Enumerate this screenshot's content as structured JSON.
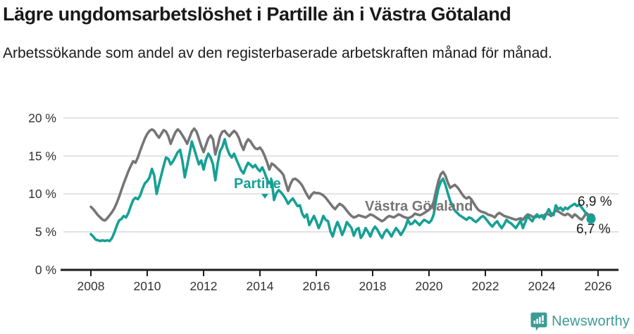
{
  "header": {
    "title": "Lägre ungdomsarbetslöshet i Partille än i Västra Götaland",
    "subtitle": "Arbetssökande som andel av den registerbaserade arbetskraften månad för månad."
  },
  "colors": {
    "partille": "#16A095",
    "vastra_gotaland": "#757575",
    "grid": "#DCDCDC",
    "axis": "#1d1d1d",
    "tick_text": "#333333",
    "end_label_text": "#1a1a1a",
    "brand_teal": "#3B9B95"
  },
  "chart_data": {
    "type": "line",
    "title": "Lägre ungdomsarbetslöshet i Partille än i Västra Götaland",
    "subtitle": "Arbetssökande som andel av den registerbaserade arbetskraften månad för månad.",
    "grid": true,
    "legend": "inline-labels",
    "x_axis": {
      "unit": "year-month",
      "tick_values": [
        2008,
        2010,
        2012,
        2014,
        2016,
        2018,
        2020,
        2022,
        2024,
        2026
      ],
      "tick_labels": [
        "2008",
        "2010",
        "2012",
        "2014",
        "2016",
        "2018",
        "2020",
        "2022",
        "2024",
        "2026"
      ]
    },
    "y_axis": {
      "unit": "percent",
      "range": [
        0,
        20
      ],
      "tick_values": [
        0,
        5,
        10,
        15,
        20
      ],
      "tick_labels": [
        "0 %",
        "5 %",
        "10 %",
        "15 %",
        "20 %"
      ]
    },
    "series": [
      {
        "name": "Västra Götaland",
        "color": "#757575",
        "start_year": 2008,
        "start_month": 1,
        "end_label": "6,9 %",
        "values": [
          8.3,
          8.0,
          7.6,
          7.2,
          6.9,
          6.6,
          6.5,
          6.8,
          7.2,
          7.6,
          8.1,
          8.8,
          9.6,
          10.5,
          11.4,
          12.2,
          13.0,
          13.7,
          14.3,
          14.1,
          14.8,
          15.7,
          16.5,
          17.3,
          17.9,
          18.3,
          18.5,
          18.3,
          17.8,
          17.4,
          17.9,
          18.4,
          18.2,
          17.6,
          16.6,
          17.4,
          18.1,
          18.5,
          18.2,
          17.7,
          17.2,
          16.6,
          17.4,
          18.2,
          18.6,
          18.2,
          17.3,
          16.3,
          15.5,
          16.4,
          17.3,
          17.7,
          17.2,
          15.2,
          16.3,
          17.6,
          18.2,
          18.3,
          17.9,
          17.6,
          18.0,
          18.3,
          18.0,
          17.4,
          16.5,
          15.8,
          16.7,
          17.2,
          16.9,
          16.4,
          16.0,
          15.9,
          16.1,
          15.7,
          15.0,
          14.2,
          13.2,
          14.0,
          13.8,
          13.5,
          13.2,
          12.9,
          12.5,
          11.4,
          10.4,
          11.3,
          11.9,
          12.0,
          11.8,
          11.5,
          11.1,
          10.5,
          9.9,
          9.4,
          9.9,
          10.2,
          10.1,
          10.1,
          10.0,
          9.8,
          9.5,
          9.1,
          8.7,
          8.3,
          8.0,
          8.4,
          8.7,
          8.5,
          8.2,
          7.8,
          7.4,
          7.1,
          6.9,
          7.0,
          7.2,
          7.1,
          7.0,
          6.9,
          7.1,
          7.3,
          7.2,
          7.0,
          6.8,
          6.6,
          6.4,
          6.6,
          6.9,
          7.1,
          7.0,
          6.9,
          7.1,
          7.3,
          7.2,
          7.0,
          6.9,
          6.8,
          6.9,
          7.1,
          7.4,
          7.3,
          7.2,
          7.3,
          7.5,
          7.7,
          7.9,
          8.2,
          9.0,
          10.4,
          11.7,
          12.6,
          12.9,
          12.4,
          11.5,
          10.8,
          11.0,
          11.2,
          10.9,
          10.5,
          10.0,
          9.6,
          9.4,
          9.6,
          9.3,
          8.8,
          8.3,
          7.9,
          7.7,
          7.6,
          7.5,
          7.3,
          7.2,
          7.1,
          6.9,
          7.3,
          7.5,
          7.3,
          7.1,
          7.0,
          6.9,
          6.8,
          6.7,
          6.6,
          6.7,
          6.8,
          6.6,
          7.0,
          7.3,
          7.2,
          7.0,
          6.9,
          7.0,
          7.1,
          7.0,
          7.2,
          7.4,
          7.3,
          7.1,
          7.5,
          7.8,
          7.7,
          7.5,
          7.3,
          7.2,
          7.4,
          7.2,
          6.9,
          7.3,
          7.1,
          6.8,
          6.6,
          7.0,
          7.5,
          7.2,
          6.9
        ]
      },
      {
        "name": "Partille",
        "color": "#16A095",
        "start_year": 2008,
        "start_month": 1,
        "end_label": "6,7 %",
        "values": [
          4.7,
          4.4,
          4.0,
          3.9,
          3.8,
          3.9,
          3.8,
          3.9,
          3.8,
          4.2,
          4.9,
          5.8,
          6.5,
          6.7,
          7.1,
          6.9,
          7.5,
          8.4,
          9.2,
          9.5,
          9.3,
          9.8,
          10.7,
          11.4,
          11.7,
          12.2,
          13.3,
          12.4,
          10.0,
          11.3,
          12.5,
          13.7,
          14.8,
          14.6,
          13.9,
          14.3,
          14.9,
          15.5,
          15.8,
          14.3,
          12.2,
          13.7,
          15.3,
          16.9,
          15.9,
          14.9,
          13.9,
          14.4,
          13.2,
          14.5,
          15.3,
          14.8,
          13.9,
          11.8,
          14.0,
          15.6,
          16.2,
          17.2,
          16.0,
          15.2,
          14.8,
          15.3,
          14.5,
          13.8,
          13.1,
          12.7,
          13.5,
          14.1,
          13.8,
          13.5,
          13.8,
          13.3,
          13.0,
          13.5,
          12.8,
          11.9,
          11.4,
          11.8,
          9.2,
          10.1,
          10.5,
          10.2,
          9.8,
          9.3,
          8.7,
          9.1,
          9.4,
          8.9,
          8.4,
          8.5,
          7.4,
          6.9,
          7.3,
          5.9,
          6.5,
          7.1,
          6.4,
          5.5,
          6.2,
          7.1,
          6.6,
          6.4,
          5.1,
          4.4,
          5.5,
          6.3,
          5.6,
          4.6,
          5.3,
          6.3,
          5.9,
          5.5,
          4.5,
          5.3,
          5.5,
          4.2,
          4.7,
          5.5,
          5.0,
          4.4,
          5.2,
          5.7,
          5.3,
          4.7,
          4.2,
          4.9,
          5.3,
          4.9,
          4.4,
          5.0,
          5.5,
          5.1,
          4.6,
          5.1,
          5.7,
          6.6,
          6.0,
          6.1,
          6.5,
          6.2,
          5.9,
          6.3,
          6.6,
          6.4,
          6.2,
          6.5,
          7.3,
          9.2,
          10.7,
          11.6,
          12.0,
          11.2,
          10.1,
          9.1,
          8.4,
          7.8,
          7.5,
          7.2,
          7.0,
          6.8,
          6.6,
          6.9,
          6.8,
          6.5,
          6.3,
          6.6,
          6.9,
          7.1,
          6.8,
          6.4,
          6.0,
          5.7,
          6.1,
          6.4,
          5.9,
          5.5,
          6.0,
          6.6,
          6.3,
          6.1,
          5.8,
          5.5,
          6.0,
          6.5,
          5.5,
          6.3,
          7.1,
          6.7,
          6.4,
          7.0,
          7.3,
          6.9,
          7.2,
          6.7,
          7.4,
          8.0,
          7.4,
          7.2,
          8.5,
          8.0,
          8.2,
          7.8,
          8.2,
          8.0,
          8.3,
          8.5,
          8.7,
          8.4,
          8.6,
          8.2,
          7.8,
          7.4,
          7.0,
          6.7
        ]
      }
    ]
  },
  "footer": {
    "brand": "Newsworthy"
  }
}
